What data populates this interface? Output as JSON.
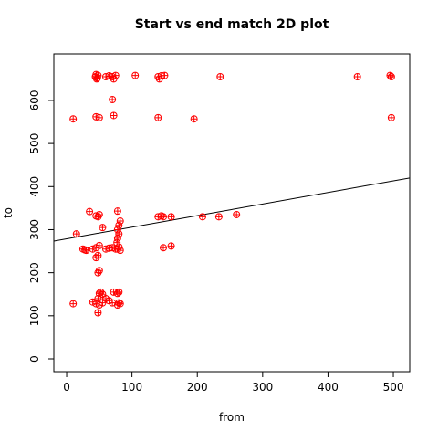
{
  "chart_data": {
    "type": "scatter",
    "title": "Start vs end match 2D plot",
    "x_label": "from",
    "y_label": "to",
    "color": "#ff0000",
    "x": [
      45,
      44,
      46,
      48,
      47,
      60,
      65,
      70,
      72,
      75,
      105,
      140,
      142,
      145,
      150,
      235,
      445,
      495,
      497,
      10,
      45,
      50,
      72,
      70,
      140,
      195,
      497,
      35,
      45,
      48,
      50,
      78,
      140,
      145,
      148,
      160,
      208,
      233,
      260,
      15,
      55,
      78,
      80,
      82,
      78,
      80,
      77,
      80,
      78,
      82,
      60,
      65,
      70,
      75,
      25,
      28,
      30,
      40,
      45,
      50,
      45,
      48,
      50,
      48,
      148,
      160,
      50,
      52,
      55,
      72,
      78,
      80,
      10,
      40,
      45,
      48,
      50,
      55,
      60,
      65,
      70,
      78,
      80,
      82,
      48
    ],
    "values": [
      660,
      655,
      650,
      658,
      652,
      655,
      657,
      655,
      650,
      658,
      658,
      655,
      650,
      657,
      658,
      655,
      655,
      658,
      655,
      557,
      562,
      560,
      565,
      602,
      560,
      557,
      560,
      342,
      332,
      330,
      335,
      343,
      330,
      332,
      330,
      330,
      330,
      330,
      335,
      290,
      305,
      300,
      310,
      320,
      280,
      290,
      270,
      260,
      255,
      252,
      255,
      257,
      258,
      255,
      255,
      253,
      252,
      255,
      258,
      263,
      235,
      240,
      205,
      200,
      258,
      262,
      152,
      155,
      150,
      155,
      152,
      155,
      128,
      132,
      128,
      140,
      125,
      130,
      140,
      135,
      130,
      125,
      130,
      128,
      107
    ],
    "trend_line": {
      "intercept": 278.8,
      "slope": 0.269
    },
    "xlim": [
      -19.6,
      525.1
    ],
    "ylim": [
      -29.7,
      708
    ],
    "xticks": [
      0,
      100,
      200,
      300,
      400,
      500
    ],
    "yticks": [
      0,
      100,
      200,
      300,
      400,
      500,
      600
    ]
  }
}
